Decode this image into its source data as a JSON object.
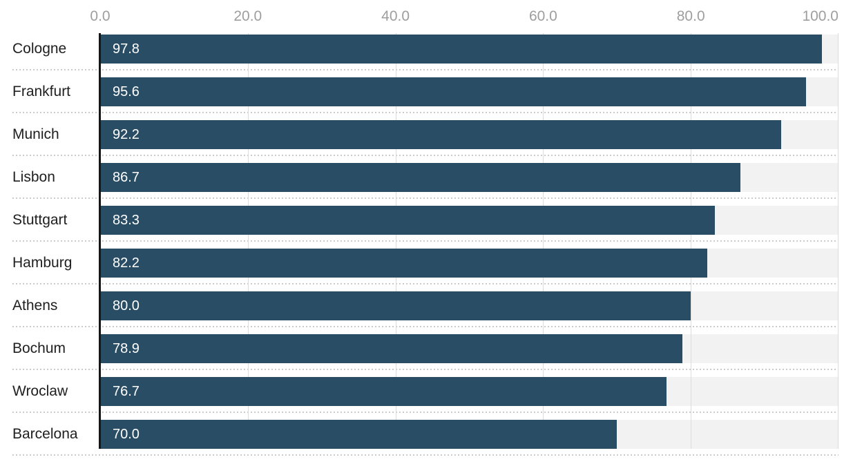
{
  "chart_data": {
    "type": "bar",
    "orientation": "horizontal",
    "title": "",
    "categories": [
      "Cologne",
      "Frankfurt",
      "Munich",
      "Lisbon",
      "Stuttgart",
      "Hamburg",
      "Athens",
      "Bochum",
      "Wroclaw",
      "Barcelona"
    ],
    "values": [
      97.8,
      95.6,
      92.2,
      86.7,
      83.3,
      82.2,
      80.0,
      78.9,
      76.7,
      70.0
    ],
    "value_labels": [
      "97.8",
      "95.6",
      "92.2",
      "86.7",
      "83.3",
      "82.2",
      "80.0",
      "78.9",
      "76.7",
      "70.0"
    ],
    "x_ticks": [
      "0.0",
      "20.0",
      "40.0",
      "60.0",
      "80.0",
      "100.0"
    ],
    "xlim": [
      0,
      100
    ],
    "axis_position": "top",
    "grid": "vertical",
    "legend_position": "none",
    "value_label_position": "inside-start",
    "colors": {
      "bar": "#2a4d66",
      "track": "#f2f2f2",
      "gridline": "#dcdcdc",
      "axis_line": "#161616",
      "tick_label": "#9e9e9e",
      "category_label": "#202020",
      "value_label": "#ffffff",
      "separator": "#cbcbcb",
      "background": "#ffffff"
    }
  }
}
